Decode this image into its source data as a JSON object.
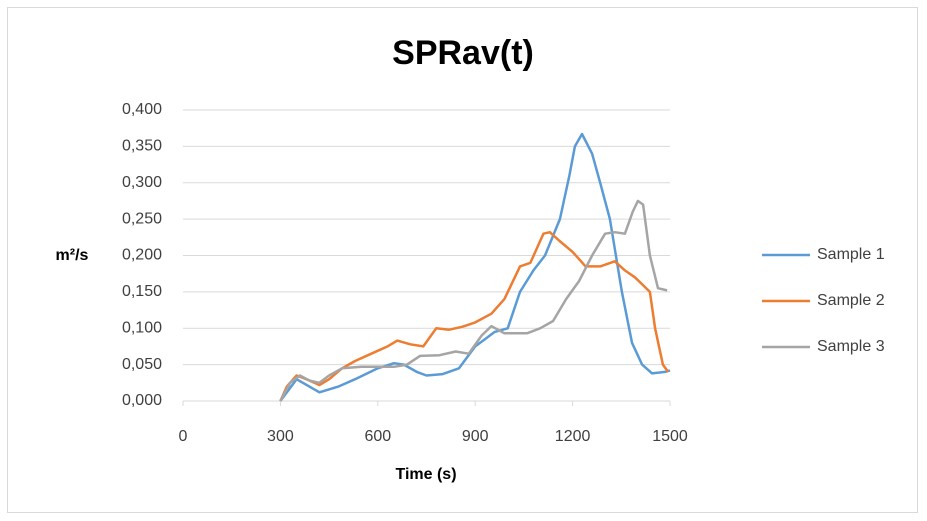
{
  "chart_data": {
    "type": "line",
    "title": "SPRav(t)",
    "x_label": "Time (s)",
    "y_label": "m²/s",
    "xlim": [
      0,
      1500
    ],
    "xticks": [
      0,
      300,
      600,
      900,
      1200,
      1500
    ],
    "ylim": [
      0,
      0.4
    ],
    "yticks": [
      {
        "value": 0,
        "label": "0,000"
      },
      {
        "value": 0.05,
        "label": "0,050"
      },
      {
        "value": 0.1,
        "label": "0,100"
      },
      {
        "value": 0.15,
        "label": "0,150"
      },
      {
        "value": 0.2,
        "label": "0,200"
      },
      {
        "value": 0.25,
        "label": "0,250"
      },
      {
        "value": 0.3,
        "label": "0,300"
      },
      {
        "value": 0.35,
        "label": "0,350"
      },
      {
        "value": 0.4,
        "label": "0,400"
      }
    ],
    "grid": true,
    "legend": "right",
    "series": [
      {
        "name": "Sample 1",
        "color": "#5b9bd5",
        "x": [
          300,
          350,
          420,
          480,
          530,
          600,
          650,
          680,
          720,
          750,
          800,
          850,
          900,
          930,
          960,
          1000,
          1038,
          1080,
          1115,
          1161,
          1190,
          1207,
          1229,
          1260,
          1285,
          1315,
          1352,
          1383,
          1414,
          1445,
          1485,
          1500
        ],
        "values": [
          0,
          0.03,
          0.012,
          0.02,
          0.03,
          0.045,
          0.052,
          0.05,
          0.04,
          0.035,
          0.037,
          0.045,
          0.075,
          0.085,
          0.095,
          0.1,
          0.15,
          0.18,
          0.2,
          0.25,
          0.31,
          0.35,
          0.367,
          0.34,
          0.3,
          0.25,
          0.15,
          0.08,
          0.05,
          0.038,
          0.04,
          0.042
        ]
      },
      {
        "name": "Sample 2",
        "color": "#ed7d31",
        "x": [
          300,
          320,
          350,
          380,
          420,
          450,
          490,
          530,
          580,
          630,
          660,
          700,
          740,
          780,
          820,
          860,
          900,
          950,
          990,
          1038,
          1070,
          1110,
          1130,
          1160,
          1200,
          1240,
          1285,
          1330,
          1360,
          1392,
          1438,
          1454,
          1478,
          1494
        ],
        "values": [
          0,
          0.02,
          0.035,
          0.03,
          0.022,
          0.03,
          0.045,
          0.055,
          0.065,
          0.075,
          0.083,
          0.078,
          0.075,
          0.1,
          0.098,
          0.102,
          0.108,
          0.12,
          0.14,
          0.185,
          0.19,
          0.23,
          0.232,
          0.22,
          0.205,
          0.185,
          0.185,
          0.192,
          0.18,
          0.17,
          0.15,
          0.1,
          0.05,
          0.04
        ]
      },
      {
        "name": "Sample 3",
        "color": "#a5a5a5",
        "x": [
          300,
          330,
          360,
          390,
          420,
          450,
          490,
          550,
          650,
          690,
          730,
          790,
          840,
          880,
          920,
          950,
          990,
          1060,
          1100,
          1140,
          1180,
          1220,
          1260,
          1300,
          1330,
          1361,
          1385,
          1401,
          1417,
          1438,
          1463,
          1491
        ],
        "values": [
          0,
          0.025,
          0.035,
          0.028,
          0.025,
          0.035,
          0.045,
          0.047,
          0.047,
          0.05,
          0.062,
          0.063,
          0.068,
          0.065,
          0.09,
          0.103,
          0.093,
          0.093,
          0.1,
          0.11,
          0.14,
          0.165,
          0.2,
          0.23,
          0.232,
          0.23,
          0.26,
          0.275,
          0.27,
          0.2,
          0.155,
          0.152
        ]
      }
    ]
  }
}
